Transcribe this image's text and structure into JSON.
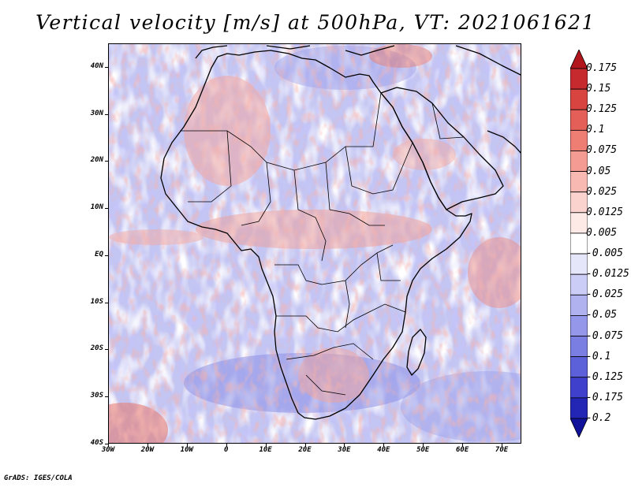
{
  "title": "Vertical velocity [m/s] at 500hPa, VT: 2021061621",
  "footer": "GrADS: IGES/COLA",
  "map": {
    "lon_range": [
      -30,
      75
    ],
    "lat_range": [
      -40,
      45
    ],
    "lat_ticks": [
      {
        "label": "40N",
        "lat": 40
      },
      {
        "label": "30N",
        "lat": 30
      },
      {
        "label": "20N",
        "lat": 20
      },
      {
        "label": "10N",
        "lat": 10
      },
      {
        "label": "EQ",
        "lat": 0
      },
      {
        "label": "10S",
        "lat": -10
      },
      {
        "label": "20S",
        "lat": -20
      },
      {
        "label": "30S",
        "lat": -30
      },
      {
        "label": "40S",
        "lat": -40
      }
    ],
    "lon_ticks": [
      {
        "label": "30W",
        "lon": -30
      },
      {
        "label": "20W",
        "lon": -20
      },
      {
        "label": "10W",
        "lon": -10
      },
      {
        "label": "0",
        "lon": 0
      },
      {
        "label": "10E",
        "lon": 10
      },
      {
        "label": "20E",
        "lon": 20
      },
      {
        "label": "30E",
        "lon": 30
      },
      {
        "label": "40E",
        "lon": 40
      },
      {
        "label": "50E",
        "lon": 50
      },
      {
        "label": "60E",
        "lon": 60
      },
      {
        "label": "70E",
        "lon": 70
      }
    ]
  },
  "colorbar": {
    "labels": [
      "0.175",
      "0.15",
      "0.125",
      "0.1",
      "0.075",
      "0.05",
      "0.025",
      "0.0125",
      "0.005",
      "-0.005",
      "-0.0125",
      "-0.025",
      "-0.05",
      "-0.075",
      "-0.1",
      "-0.125",
      "-0.175",
      "-0.2"
    ],
    "colors": [
      "#b0161c",
      "#c62a2e",
      "#d8443f",
      "#e45f57",
      "#ee7e74",
      "#f49c93",
      "#f8b9b2",
      "#fbd3ce",
      "#fdeae7",
      "#ffffff",
      "#e6e6fb",
      "#cccdf6",
      "#b0b2f0",
      "#9497ea",
      "#7a7ee3",
      "#5c60d9",
      "#3f41cc",
      "#2326b4",
      "#10129a"
    ]
  }
}
